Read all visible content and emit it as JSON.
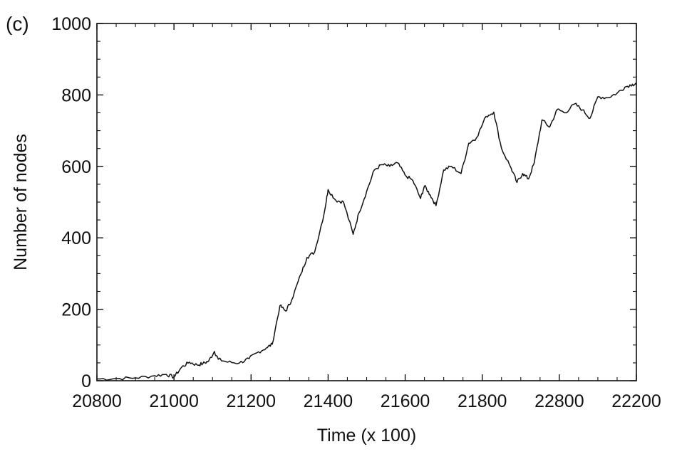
{
  "panel_label": "(c)",
  "chart_data": {
    "type": "line",
    "xlabel": "Time (x 100)",
    "ylabel": "Number of nodes",
    "xtick_labels": [
      "20800",
      "21000",
      "21200",
      "21400",
      "21600",
      "21800",
      "22800",
      "22200"
    ],
    "ytick_labels": [
      "0",
      "200",
      "400",
      "600",
      "800",
      "1000"
    ],
    "ylim": [
      0,
      1000
    ],
    "grid": false,
    "series": [
      {
        "color": "#111111",
        "points": [
          [
            20800,
            5
          ],
          [
            20850,
            6
          ],
          [
            20900,
            8
          ],
          [
            20950,
            14
          ],
          [
            20980,
            18
          ],
          [
            21000,
            10
          ],
          [
            21020,
            38
          ],
          [
            21040,
            52
          ],
          [
            21060,
            44
          ],
          [
            21075,
            48
          ],
          [
            21090,
            55
          ],
          [
            21105,
            82
          ],
          [
            21115,
            60
          ],
          [
            21140,
            52
          ],
          [
            21170,
            50
          ],
          [
            21195,
            62
          ],
          [
            21215,
            78
          ],
          [
            21240,
            92
          ],
          [
            21255,
            102
          ],
          [
            21275,
            210
          ],
          [
            21290,
            195
          ],
          [
            21305,
            225
          ],
          [
            21330,
            300
          ],
          [
            21345,
            345
          ],
          [
            21365,
            360
          ],
          [
            21390,
            470
          ],
          [
            21400,
            535
          ],
          [
            21420,
            505
          ],
          [
            21440,
            500
          ],
          [
            21465,
            410
          ],
          [
            21480,
            470
          ],
          [
            21500,
            530
          ],
          [
            21520,
            590
          ],
          [
            21540,
            605
          ],
          [
            21560,
            600
          ],
          [
            21580,
            610
          ],
          [
            21600,
            575
          ],
          [
            21620,
            560
          ],
          [
            21640,
            510
          ],
          [
            21650,
            545
          ],
          [
            21665,
            520
          ],
          [
            21680,
            490
          ],
          [
            21700,
            590
          ],
          [
            21720,
            600
          ],
          [
            21745,
            580
          ],
          [
            21765,
            665
          ],
          [
            21785,
            680
          ],
          [
            21810,
            740
          ],
          [
            21830,
            752
          ],
          [
            21850,
            650
          ],
          [
            21875,
            595
          ],
          [
            21890,
            555
          ],
          [
            21905,
            580
          ],
          [
            21920,
            565
          ],
          [
            21935,
            610
          ],
          [
            21955,
            730
          ],
          [
            21975,
            710
          ],
          [
            21995,
            760
          ],
          [
            22015,
            750
          ],
          [
            22040,
            775
          ],
          [
            22060,
            758
          ],
          [
            22080,
            735
          ],
          [
            22100,
            795
          ],
          [
            22125,
            792
          ],
          [
            22150,
            805
          ],
          [
            22170,
            822
          ],
          [
            22190,
            830
          ],
          [
            22200,
            828
          ]
        ]
      }
    ]
  }
}
